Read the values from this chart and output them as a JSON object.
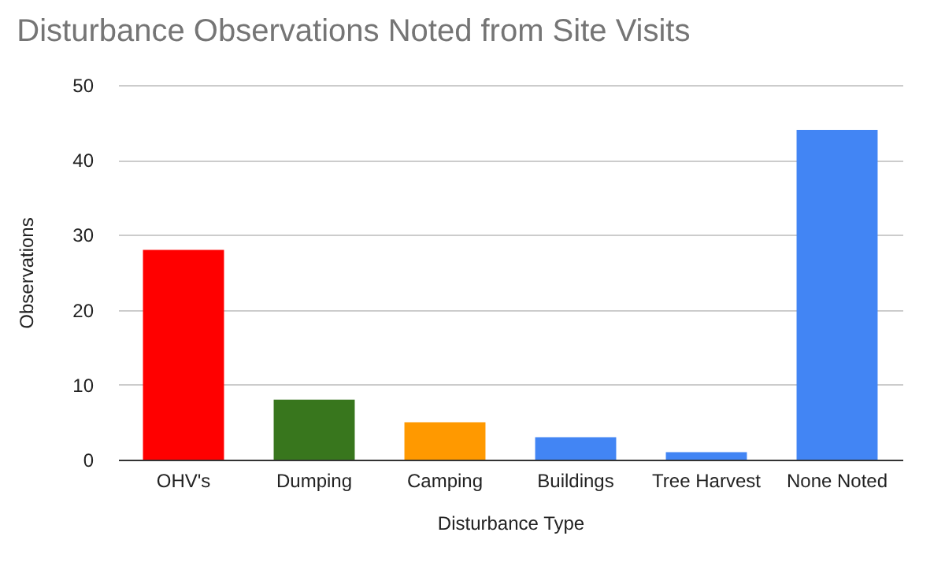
{
  "chart_data": {
    "type": "bar",
    "title": "Disturbance Observations Noted from Site Visits",
    "xlabel": "Disturbance Type",
    "ylabel": "Observations",
    "categories": [
      "OHV's",
      "Dumping",
      "Camping",
      "Buildings",
      "Tree Harvest",
      "None Noted"
    ],
    "values": [
      28,
      8,
      5,
      3,
      1,
      44
    ],
    "colors": [
      "#ff0000",
      "#38761d",
      "#ff9900",
      "#4285f4",
      "#4285f4",
      "#4285f4"
    ],
    "ylim": [
      0,
      50
    ],
    "yticks": [
      0,
      10,
      20,
      30,
      40,
      50
    ],
    "grid": "y"
  }
}
